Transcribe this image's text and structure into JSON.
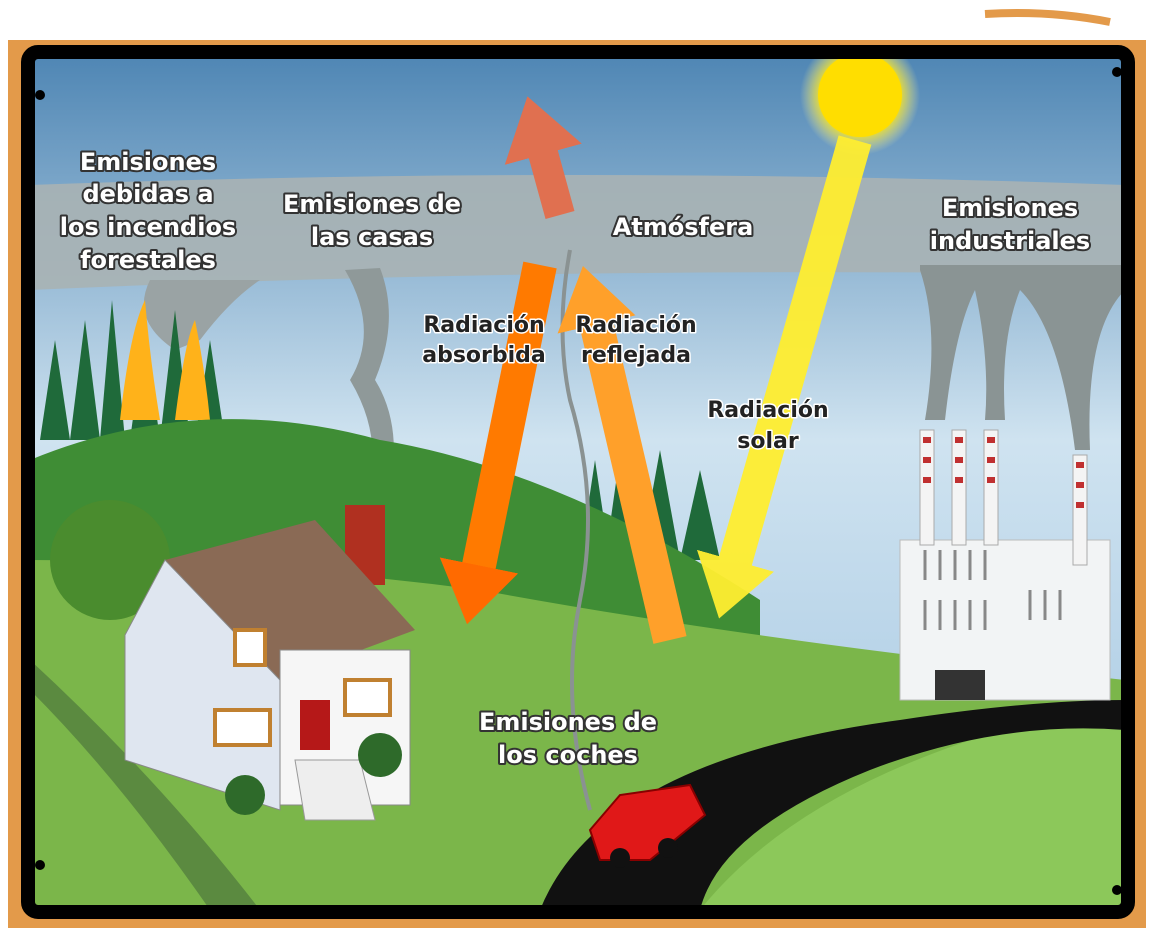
{
  "labels": [
    {
      "lines": [
        "Emisiones",
        "debidas a",
        "los incendios",
        "forestales"
      ]
    },
    {
      "lines": [
        "Emisiones de",
        "las casas"
      ]
    },
    {
      "lines": [
        "Atmósfera"
      ]
    },
    {
      "lines": [
        "Emisiones",
        "industriales"
      ]
    },
    {
      "lines": [
        "Radiación",
        "absorbida"
      ]
    },
    {
      "lines": [
        "Radiación",
        "reflejada"
      ]
    },
    {
      "lines": [
        "Radiación",
        "solar"
      ]
    },
    {
      "lines": [
        "Emisiones de",
        "los coches"
      ]
    }
  ]
}
